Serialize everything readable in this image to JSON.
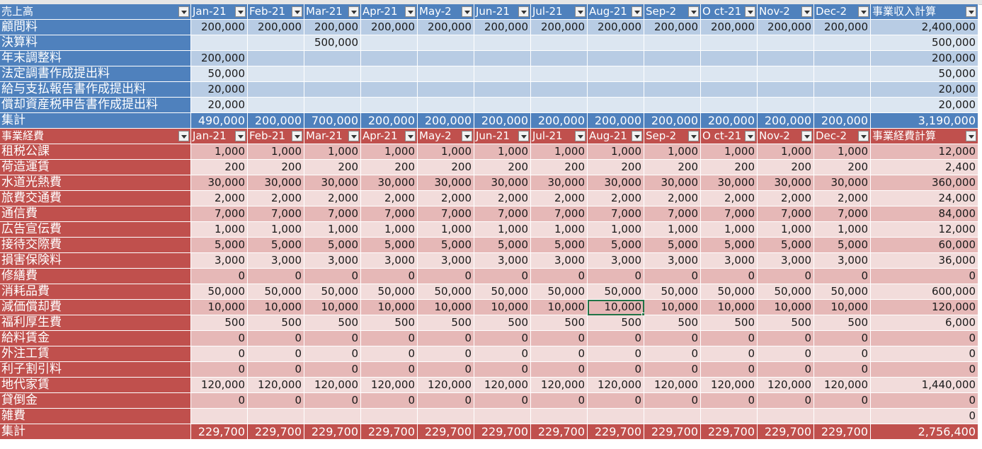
{
  "colors": {
    "income_header": "#4f81bd",
    "income_label": "#4f81bd",
    "income_band_a": "#b8cce4",
    "income_band_b": "#dce6f1",
    "expense_header": "#c0504d",
    "expense_label": "#c0504d",
    "expense_band_a": "#e6b8b7",
    "expense_band_b": "#f2dcdb",
    "selection": "#217346"
  },
  "income": {
    "title": "売上高",
    "months": [
      "Jan-21",
      "Feb-21",
      "Mar-21",
      "Apr-21",
      "May-2",
      "Jun-21",
      "Jul-21",
      "Aug-21",
      "Sep-2",
      "O ct-21",
      "Nov-2",
      "Dec-2"
    ],
    "total_header": "事業収入計算",
    "rows": [
      {
        "label": "顧問料",
        "values": [
          "200,000",
          "200,000",
          "200,000",
          "200,000",
          "200,000",
          "200,000",
          "200,000",
          "200,000",
          "200,000",
          "200,000",
          "200,000",
          "200,000"
        ],
        "total": "2,400,000"
      },
      {
        "label": "決算料",
        "values": [
          "",
          "",
          "500,000",
          "",
          "",
          "",
          "",
          "",
          "",
          "",
          "",
          ""
        ],
        "total": "500,000"
      },
      {
        "label": "年末調整料",
        "values": [
          "200,000",
          "",
          "",
          "",
          "",
          "",
          "",
          "",
          "",
          "",
          "",
          ""
        ],
        "total": "200,000"
      },
      {
        "label": "法定調書作成提出料",
        "values": [
          "50,000",
          "",
          "",
          "",
          "",
          "",
          "",
          "",
          "",
          "",
          "",
          ""
        ],
        "total": "50,000"
      },
      {
        "label": "給与支払報告書作成提出料",
        "values": [
          "20,000",
          "",
          "",
          "",
          "",
          "",
          "",
          "",
          "",
          "",
          "",
          ""
        ],
        "total": "20,000"
      },
      {
        "label": "償却資産税申告書作成提出料",
        "values": [
          "20,000",
          "",
          "",
          "",
          "",
          "",
          "",
          "",
          "",
          "",
          "",
          ""
        ],
        "total": "20,000"
      }
    ],
    "summary": {
      "label": "集計",
      "values": [
        "490,000",
        "200,000",
        "700,000",
        "200,000",
        "200,000",
        "200,000",
        "200,000",
        "200,000",
        "200,000",
        "200,000",
        "200,000",
        "200,000"
      ],
      "total": "3,190,000"
    }
  },
  "expenses": {
    "title": "事業経費",
    "months": [
      "Jan-21",
      "Feb-21",
      "Mar-21",
      "Apr-21",
      "May-2",
      "Jun-21",
      "Jul-21",
      "Aug-21",
      "Sep-2",
      "O ct-21",
      "Nov-2",
      "Dec-2"
    ],
    "total_header": "事業経費計算",
    "rows": [
      {
        "label": "租税公課",
        "values": [
          "1,000",
          "1,000",
          "1,000",
          "1,000",
          "1,000",
          "1,000",
          "1,000",
          "1,000",
          "1,000",
          "1,000",
          "1,000",
          "1,000"
        ],
        "total": "12,000"
      },
      {
        "label": "荷造運賃",
        "values": [
          "200",
          "200",
          "200",
          "200",
          "200",
          "200",
          "200",
          "200",
          "200",
          "200",
          "200",
          "200"
        ],
        "total": "2,400"
      },
      {
        "label": "水道光熱費",
        "values": [
          "30,000",
          "30,000",
          "30,000",
          "30,000",
          "30,000",
          "30,000",
          "30,000",
          "30,000",
          "30,000",
          "30,000",
          "30,000",
          "30,000"
        ],
        "total": "360,000"
      },
      {
        "label": "旅費交通費",
        "values": [
          "2,000",
          "2,000",
          "2,000",
          "2,000",
          "2,000",
          "2,000",
          "2,000",
          "2,000",
          "2,000",
          "2,000",
          "2,000",
          "2,000"
        ],
        "total": "24,000"
      },
      {
        "label": "通信費",
        "values": [
          "7,000",
          "7,000",
          "7,000",
          "7,000",
          "7,000",
          "7,000",
          "7,000",
          "7,000",
          "7,000",
          "7,000",
          "7,000",
          "7,000"
        ],
        "total": "84,000"
      },
      {
        "label": "広告宣伝費",
        "values": [
          "1,000",
          "1,000",
          "1,000",
          "1,000",
          "1,000",
          "1,000",
          "1,000",
          "1,000",
          "1,000",
          "1,000",
          "1,000",
          "1,000"
        ],
        "total": "12,000"
      },
      {
        "label": "接待交際費",
        "values": [
          "5,000",
          "5,000",
          "5,000",
          "5,000",
          "5,000",
          "5,000",
          "5,000",
          "5,000",
          "5,000",
          "5,000",
          "5,000",
          "5,000"
        ],
        "total": "60,000"
      },
      {
        "label": "損害保険料",
        "values": [
          "3,000",
          "3,000",
          "3,000",
          "3,000",
          "3,000",
          "3,000",
          "3,000",
          "3,000",
          "3,000",
          "3,000",
          "3,000",
          "3,000"
        ],
        "total": "36,000"
      },
      {
        "label": "修繕費",
        "values": [
          "0",
          "0",
          "0",
          "0",
          "0",
          "0",
          "0",
          "0",
          "0",
          "0",
          "0",
          "0"
        ],
        "total": "0"
      },
      {
        "label": "消耗品費",
        "values": [
          "50,000",
          "50,000",
          "50,000",
          "50,000",
          "50,000",
          "50,000",
          "50,000",
          "50,000",
          "50,000",
          "50,000",
          "50,000",
          "50,000"
        ],
        "total": "600,000"
      },
      {
        "label": "減価償却費",
        "values": [
          "10,000",
          "10,000",
          "10,000",
          "10,000",
          "10,000",
          "10,000",
          "10,000",
          "10,000",
          "10,000",
          "10,000",
          "10,000",
          "10,000"
        ],
        "total": "120,000"
      },
      {
        "label": "福利厚生費",
        "values": [
          "500",
          "500",
          "500",
          "500",
          "500",
          "500",
          "500",
          "500",
          "500",
          "500",
          "500",
          "500"
        ],
        "total": "6,000"
      },
      {
        "label": "給料賃金",
        "values": [
          "0",
          "0",
          "0",
          "0",
          "0",
          "0",
          "0",
          "0",
          "0",
          "0",
          "0",
          "0"
        ],
        "total": "0"
      },
      {
        "label": "外注工賃",
        "values": [
          "0",
          "0",
          "0",
          "0",
          "0",
          "0",
          "0",
          "0",
          "0",
          "0",
          "0",
          "0"
        ],
        "total": "0"
      },
      {
        "label": "利子割引料",
        "values": [
          "0",
          "0",
          "0",
          "0",
          "0",
          "0",
          "0",
          "0",
          "0",
          "0",
          "0",
          "0"
        ],
        "total": "0"
      },
      {
        "label": "地代家賃",
        "values": [
          "120,000",
          "120,000",
          "120,000",
          "120,000",
          "120,000",
          "120,000",
          "120,000",
          "120,000",
          "120,000",
          "120,000",
          "120,000",
          "120,000"
        ],
        "total": "1,440,000"
      },
      {
        "label": "貸倒金",
        "values": [
          "0",
          "0",
          "0",
          "0",
          "0",
          "0",
          "0",
          "0",
          "0",
          "0",
          "0",
          "0"
        ],
        "total": "0"
      },
      {
        "label": "雑費",
        "values": [
          "",
          "",
          "",
          "",
          "",
          "",
          "",
          "",
          "",
          "",
          "",
          ""
        ],
        "total": "0"
      }
    ],
    "summary": {
      "label": "集計",
      "values": [
        "229,700",
        "229,700",
        "229,700",
        "229,700",
        "229,700",
        "229,700",
        "229,700",
        "229,700",
        "229,700",
        "229,700",
        "229,700",
        "229,700"
      ],
      "total": "2,756,400"
    }
  },
  "selected_cell": {
    "section": "expenses",
    "row": 10,
    "col": 7
  }
}
